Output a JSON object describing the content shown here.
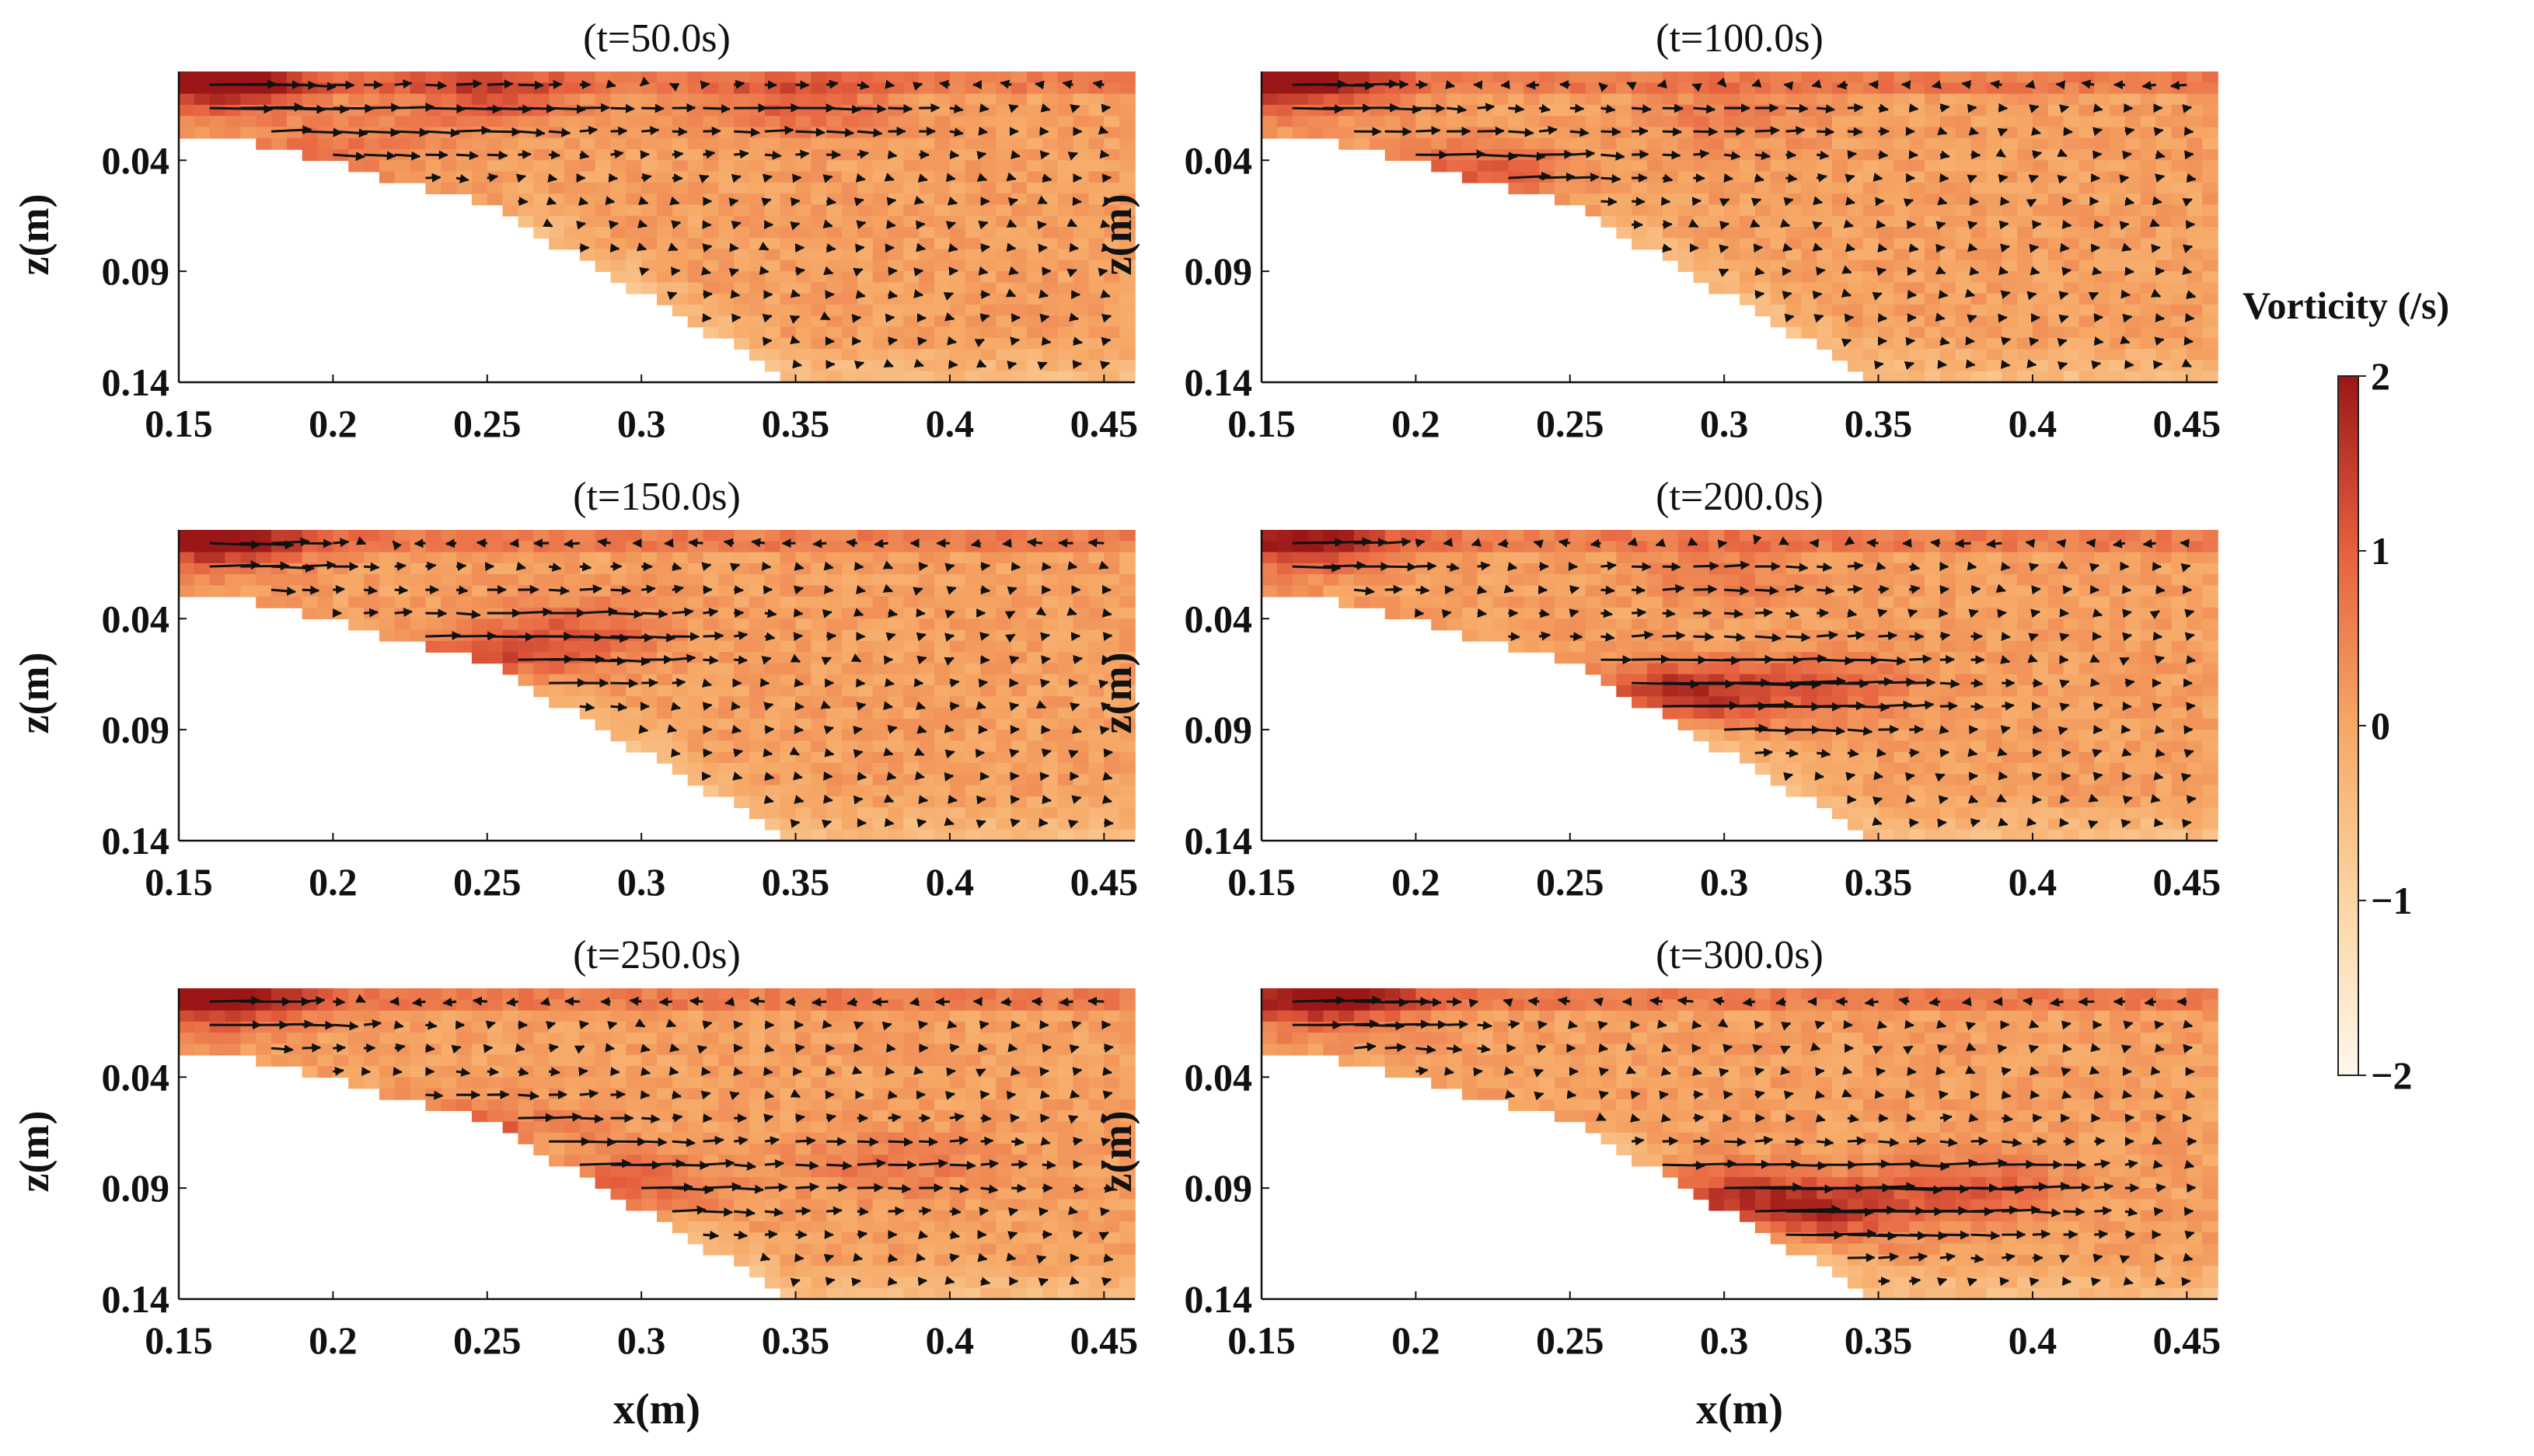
{
  "chart_data": {
    "type": "heatmap",
    "description_type": "vorticity field with velocity vectors",
    "xlabel": "x(m)",
    "ylabel": "z(m)",
    "xlim": [
      0.15,
      0.46
    ],
    "zlim": [
      0.14,
      0.0
    ],
    "x_ticks": [
      "0.15",
      "0.2",
      "0.25",
      "0.3",
      "0.35",
      "0.4",
      "0.45"
    ],
    "x_tick_values": [
      0.15,
      0.2,
      0.25,
      0.3,
      0.35,
      0.4,
      0.45
    ],
    "z_ticks": [
      "0.04",
      "0.09",
      "0.14"
    ],
    "z_tick_values": [
      0.04,
      0.09,
      0.14
    ],
    "colorbar": {
      "title": "Vorticity (/s)",
      "range": [
        -2,
        2
      ],
      "ticks": [
        "2",
        "1",
        "0",
        "−1",
        "−2"
      ],
      "tick_values": [
        2,
        1,
        0,
        -1,
        -2
      ],
      "low_color": "#fff7ec",
      "mid_color": "#f4a05c",
      "high_color": "#a50f15"
    },
    "bed_profile": {
      "x": [
        0.15,
        0.17,
        0.185,
        0.25,
        0.35,
        0.46
      ],
      "z": [
        0.03,
        0.03,
        0.036,
        0.06,
        0.14,
        0.14
      ]
    },
    "panels": [
      {
        "title": "(t=50.0s)",
        "x_label": "",
        "hotspots": [
          [
            0.16,
            0.005,
            2.0
          ],
          [
            0.25,
            0.012,
            1.0
          ],
          [
            0.35,
            0.015,
            0.9
          ],
          [
            0.2,
            0.035,
            0.6
          ]
        ]
      },
      {
        "title": "(t=100.0s)",
        "x_label": "",
        "hotspots": [
          [
            0.16,
            0.005,
            1.8
          ],
          [
            0.22,
            0.045,
            1.0
          ],
          [
            0.3,
            0.02,
            0.5
          ]
        ]
      },
      {
        "title": "(t=150.0s)",
        "x_label": "",
        "hotspots": [
          [
            0.16,
            0.005,
            1.8
          ],
          [
            0.25,
            0.06,
            1.1
          ],
          [
            0.28,
            0.045,
            0.8
          ]
        ]
      },
      {
        "title": "(t=200.0s)",
        "x_label": "",
        "hotspots": [
          [
            0.16,
            0.005,
            1.6
          ],
          [
            0.28,
            0.075,
            1.8
          ],
          [
            0.33,
            0.07,
            1.0
          ],
          [
            0.3,
            0.02,
            0.5
          ]
        ]
      },
      {
        "title": "(t=250.0s)",
        "x_label": "x(m)",
        "hotspots": [
          [
            0.16,
            0.005,
            1.8
          ],
          [
            0.29,
            0.09,
            1.3
          ],
          [
            0.25,
            0.065,
            0.9
          ],
          [
            0.38,
            0.08,
            0.6
          ]
        ]
      },
      {
        "title": "(t=300.0s)",
        "x_label": "x(m)",
        "hotspots": [
          [
            0.17,
            0.005,
            1.8
          ],
          [
            0.29,
            0.095,
            1.6
          ],
          [
            0.33,
            0.1,
            1.4
          ],
          [
            0.38,
            0.09,
            1.0
          ]
        ]
      }
    ]
  }
}
